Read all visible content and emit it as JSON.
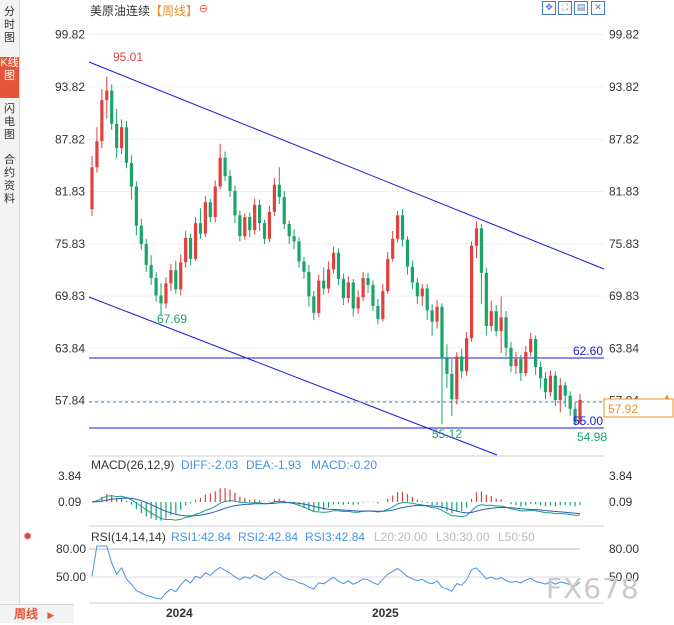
{
  "sidebar": {
    "tabs": [
      {
        "label": "分时图",
        "active": false
      },
      {
        "label": "K线图",
        "active": true
      },
      {
        "label": "闪电图",
        "active": false
      },
      {
        "label": "合约资料",
        "active": false
      }
    ]
  },
  "header": {
    "instrument": "美原油连续",
    "period_tag": "【周线】",
    "settings_icon": "circle-minus-icon"
  },
  "toolbar": {
    "icons": [
      "fit-icon",
      "expand-icon",
      "chart-icon",
      "close-icon"
    ]
  },
  "footer": {
    "period_label": "周线",
    "period_icon": "triangle-right-icon"
  },
  "watermark": "FX678",
  "price_axis": {
    "ticks": [
      "99.82",
      "93.82",
      "87.82",
      "81.83",
      "75.83",
      "69.83",
      "63.84",
      "57.84"
    ]
  },
  "time_axis": {
    "labels": [
      "2024",
      "2025"
    ]
  },
  "annotations": {
    "high_label": "95.01",
    "low_left_label": "67.69",
    "low_bottom_label": "55.12",
    "line_upper_label": "62.60",
    "line_lower_label": "55.00",
    "last_low_label": "54.98",
    "current_price": "57.92"
  },
  "macd": {
    "title": "MACD(26,12,9)",
    "diff": "DIFF:-2.03",
    "dea": "DEA:-1.93",
    "macd": "MACD:-0.20",
    "ticks": [
      "3.84",
      "0.09"
    ]
  },
  "rsi": {
    "icon": "sun-icon",
    "title": "RSI(14,14,14)",
    "rsi1": "RSI1:42.84",
    "rsi2": "RSI2:42.84",
    "rsi3": "RSI3:42.84",
    "l20": "L20:20.00",
    "l30": "L30:30.00",
    "l50": "L50:50",
    "ticks": [
      "80.00",
      "50.00"
    ]
  },
  "colors": {
    "up": "#e0413f",
    "down": "#1aa46a",
    "trend": "#1b1bd6",
    "accent": "#e6553a",
    "price_tag": "#f08c28"
  },
  "chart_data": {
    "type": "candlestick",
    "y_range": [
      51.6,
      101.5
    ],
    "candles": [
      [
        79.8,
        84.6,
        79.0,
        85.9
      ],
      [
        84.6,
        87.6,
        84.0,
        89.2
      ],
      [
        87.6,
        92.3,
        86.8,
        93.6
      ],
      [
        92.3,
        93.4,
        90.2,
        95.01
      ],
      [
        93.4,
        89.6,
        88.9,
        94.1
      ],
      [
        89.6,
        86.8,
        85.6,
        91.3
      ],
      [
        86.8,
        89.2,
        86.1,
        90.1
      ],
      [
        89.2,
        85.1,
        84.5,
        89.9
      ],
      [
        85.1,
        82.4,
        80.9,
        86.0
      ],
      [
        82.4,
        77.9,
        76.8,
        83.0
      ],
      [
        77.9,
        75.8,
        75.1,
        78.7
      ],
      [
        75.8,
        73.4,
        72.6,
        76.4
      ],
      [
        73.4,
        71.9,
        71.1,
        74.5
      ],
      [
        71.9,
        69.9,
        69.2,
        72.6
      ],
      [
        69.9,
        69.0,
        67.69,
        71.3
      ],
      [
        69.0,
        71.3,
        68.4,
        72.0
      ],
      [
        71.3,
        72.8,
        70.4,
        73.5
      ],
      [
        72.8,
        70.6,
        70.1,
        73.9
      ],
      [
        70.6,
        73.7,
        69.9,
        74.6
      ],
      [
        73.7,
        76.5,
        73.1,
        77.3
      ],
      [
        76.5,
        74.1,
        73.4,
        77.0
      ],
      [
        74.1,
        78.2,
        73.9,
        78.9
      ],
      [
        78.2,
        77.0,
        76.4,
        79.9
      ],
      [
        77.0,
        80.6,
        76.6,
        81.3
      ],
      [
        80.6,
        78.9,
        78.3,
        81.0
      ],
      [
        78.9,
        82.4,
        78.3,
        83.1
      ],
      [
        82.4,
        85.7,
        82.1,
        87.3
      ],
      [
        85.7,
        83.6,
        83.0,
        86.4
      ],
      [
        83.6,
        81.9,
        81.2,
        84.3
      ],
      [
        81.9,
        79.1,
        78.2,
        82.5
      ],
      [
        79.1,
        76.7,
        76.1,
        79.6
      ],
      [
        76.7,
        78.9,
        76.3,
        79.3
      ],
      [
        78.9,
        77.4,
        76.6,
        79.4
      ],
      [
        77.4,
        80.3,
        76.9,
        81.0
      ],
      [
        80.3,
        78.2,
        77.3,
        80.9
      ],
      [
        78.2,
        76.4,
        75.8,
        78.6
      ],
      [
        76.4,
        79.5,
        76.0,
        80.2
      ],
      [
        79.5,
        82.6,
        79.0,
        83.4
      ],
      [
        82.6,
        81.2,
        80.4,
        84.6
      ],
      [
        81.2,
        78.1,
        77.5,
        81.9
      ],
      [
        78.1,
        76.7,
        75.8,
        78.5
      ],
      [
        76.7,
        76.1,
        75.2,
        77.5
      ],
      [
        76.1,
        73.8,
        73.1,
        76.6
      ],
      [
        73.8,
        72.6,
        71.8,
        74.3
      ],
      [
        72.6,
        69.8,
        68.6,
        73.4
      ],
      [
        69.8,
        67.9,
        67.1,
        70.4
      ],
      [
        67.9,
        71.6,
        67.4,
        72.3
      ],
      [
        71.6,
        70.7,
        70.0,
        73.1
      ],
      [
        70.7,
        72.9,
        70.2,
        73.8
      ],
      [
        72.9,
        74.8,
        72.4,
        75.5
      ],
      [
        74.8,
        71.8,
        71.1,
        75.3
      ],
      [
        71.8,
        69.6,
        68.8,
        72.4
      ],
      [
        69.6,
        71.4,
        69.1,
        72.1
      ],
      [
        71.4,
        68.4,
        67.5,
        71.8
      ],
      [
        68.4,
        69.7,
        67.8,
        70.5
      ],
      [
        69.7,
        71.9,
        69.3,
        72.6
      ],
      [
        71.9,
        71.1,
        70.2,
        72.5
      ],
      [
        71.1,
        68.7,
        68.1,
        71.6
      ],
      [
        68.7,
        67.2,
        66.6,
        69.5
      ],
      [
        67.2,
        70.4,
        66.9,
        71.2
      ],
      [
        70.4,
        74.1,
        70.1,
        74.9
      ],
      [
        74.1,
        76.4,
        73.8,
        77.3
      ],
      [
        76.4,
        79.1,
        76.0,
        79.6
      ],
      [
        79.1,
        76.3,
        75.5,
        79.8
      ],
      [
        76.3,
        73.2,
        72.3,
        76.7
      ],
      [
        73.2,
        71.4,
        70.6,
        73.9
      ],
      [
        71.4,
        69.8,
        68.9,
        71.9
      ],
      [
        69.8,
        70.7,
        68.7,
        71.2
      ],
      [
        70.7,
        68.2,
        67.1,
        71.2
      ],
      [
        68.2,
        66.9,
        65.3,
        68.9
      ],
      [
        66.9,
        68.6,
        66.1,
        69.4
      ],
      [
        68.6,
        62.7,
        55.12,
        69.0
      ],
      [
        62.7,
        60.9,
        59.3,
        64.3
      ],
      [
        60.9,
        58.0,
        56.1,
        62.6
      ],
      [
        58.0,
        62.9,
        57.4,
        63.4
      ],
      [
        62.9,
        61.2,
        60.4,
        63.8
      ],
      [
        61.2,
        65.0,
        60.7,
        65.7
      ],
      [
        65.0,
        75.6,
        64.6,
        76.1
      ],
      [
        75.6,
        77.6,
        74.2,
        78.4
      ],
      [
        77.6,
        72.5,
        68.9,
        78.1
      ],
      [
        72.5,
        66.4,
        65.3,
        73.1
      ],
      [
        66.4,
        68.1,
        65.8,
        69.3
      ],
      [
        68.1,
        65.8,
        65.2,
        68.8
      ],
      [
        65.8,
        67.4,
        63.3,
        69.8
      ],
      [
        67.4,
        63.9,
        62.9,
        68.1
      ],
      [
        63.9,
        61.8,
        61.1,
        64.6
      ],
      [
        61.8,
        62.6,
        60.9,
        63.4
      ],
      [
        62.6,
        61.0,
        60.1,
        63.1
      ],
      [
        61.0,
        63.4,
        60.6,
        64.1
      ],
      [
        63.4,
        64.9,
        62.9,
        65.6
      ],
      [
        64.9,
        61.7,
        60.8,
        65.3
      ],
      [
        61.7,
        60.4,
        59.2,
        62.3
      ],
      [
        60.4,
        58.8,
        58.0,
        61.1
      ],
      [
        58.8,
        60.7,
        58.3,
        61.3
      ],
      [
        60.7,
        57.9,
        57.2,
        61.2
      ],
      [
        57.9,
        59.6,
        56.5,
        60.4
      ],
      [
        59.6,
        58.4,
        57.1,
        60.0
      ],
      [
        58.4,
        56.9,
        56.1,
        58.9
      ],
      [
        56.9,
        55.3,
        54.98,
        57.6
      ],
      [
        55.3,
        57.92,
        55.1,
        58.6
      ]
    ]
  }
}
